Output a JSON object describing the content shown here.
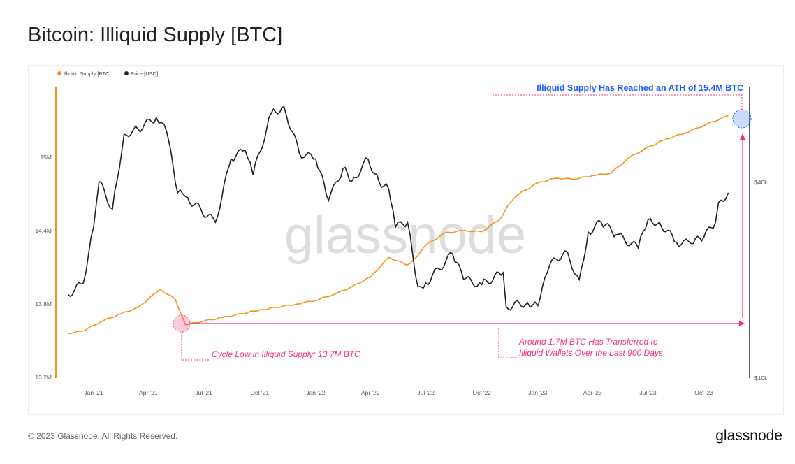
{
  "title": "Bitcoin: Illiquid Supply [BTC]",
  "footer": {
    "copyright": "© 2023 Glassnode. All Rights Reserved.",
    "logo": "glassnode"
  },
  "watermark": "glassnode",
  "chart_data": {
    "type": "line",
    "title": "",
    "legend": {
      "placement": "top-left",
      "entries": [
        "Illiquid Supply [BTC]",
        "Price [USD]"
      ]
    },
    "x_ticks": [
      "Jan '21",
      "Apr '21",
      "Jul '21",
      "Oct '21",
      "Jan '22",
      "Apr '22",
      "Jul '22",
      "Oct '22",
      "Jan '23",
      "Apr '23",
      "Jul '23",
      "Oct '23"
    ],
    "x_tick_dates": [
      "2021-01-01",
      "2021-04-01",
      "2021-07-01",
      "2021-10-01",
      "2022-01-01",
      "2022-04-01",
      "2022-07-01",
      "2022-10-01",
      "2023-01-01",
      "2023-04-01",
      "2023-07-01",
      "2023-10-01"
    ],
    "y_left": {
      "ticks": [
        "13.2M",
        "13.8M",
        "14.4M",
        "15M"
      ],
      "tick_values": [
        13.2,
        13.8,
        14.4,
        15.0
      ],
      "range": [
        13.2,
        15.6
      ],
      "unit": "M BTC"
    },
    "y_right": {
      "ticks": [
        "$10k",
        "$40k"
      ],
      "tick_values": [
        10000,
        40000
      ],
      "scale": "log"
    },
    "grid": false,
    "series": [
      {
        "name": "Illiquid Supply [BTC]",
        "color": "#f7931a",
        "axis": "left",
        "points": [
          [
            "2020-11-20",
            13.56
          ],
          [
            "2020-12-15",
            13.58
          ],
          [
            "2021-01-15",
            13.66
          ],
          [
            "2021-02-15",
            13.72
          ],
          [
            "2021-03-15",
            13.77
          ],
          [
            "2021-04-20",
            13.92
          ],
          [
            "2021-05-15",
            13.84
          ],
          [
            "2021-06-01",
            13.63
          ],
          [
            "2021-07-01",
            13.66
          ],
          [
            "2021-08-01",
            13.69
          ],
          [
            "2021-10-01",
            13.75
          ],
          [
            "2021-12-01",
            13.8
          ],
          [
            "2022-01-01",
            13.83
          ],
          [
            "2022-02-01",
            13.88
          ],
          [
            "2022-03-01",
            13.94
          ],
          [
            "2022-04-01",
            14.02
          ],
          [
            "2022-05-01",
            14.18
          ],
          [
            "2022-06-01",
            14.12
          ],
          [
            "2022-06-15",
            14.18
          ],
          [
            "2022-07-01",
            14.28
          ],
          [
            "2022-08-01",
            14.38
          ],
          [
            "2022-09-01",
            14.4
          ],
          [
            "2022-10-01",
            14.39
          ],
          [
            "2022-11-01",
            14.5
          ],
          [
            "2022-11-15",
            14.62
          ],
          [
            "2022-12-01",
            14.7
          ],
          [
            "2023-01-01",
            14.79
          ],
          [
            "2023-02-01",
            14.83
          ],
          [
            "2023-03-01",
            14.82
          ],
          [
            "2023-04-01",
            14.85
          ],
          [
            "2023-05-01",
            14.87
          ],
          [
            "2023-06-01",
            15.0
          ],
          [
            "2023-07-01",
            15.08
          ],
          [
            "2023-08-01",
            15.15
          ],
          [
            "2023-09-01",
            15.2
          ],
          [
            "2023-10-01",
            15.26
          ],
          [
            "2023-11-10",
            15.34
          ]
        ]
      },
      {
        "name": "Price [USD]",
        "color": "#222222",
        "axis": "right",
        "points": [
          [
            "2020-11-20",
            18000
          ],
          [
            "2020-12-15",
            19500
          ],
          [
            "2021-01-01",
            29000
          ],
          [
            "2021-01-10",
            40000
          ],
          [
            "2021-02-01",
            33000
          ],
          [
            "2021-02-20",
            56000
          ],
          [
            "2021-03-15",
            58000
          ],
          [
            "2021-04-14",
            63000
          ],
          [
            "2021-05-01",
            57000
          ],
          [
            "2021-05-19",
            37000
          ],
          [
            "2021-06-01",
            36000
          ],
          [
            "2021-07-20",
            30000
          ],
          [
            "2021-08-15",
            47000
          ],
          [
            "2021-09-07",
            50000
          ],
          [
            "2021-09-20",
            42000
          ],
          [
            "2021-10-20",
            65000
          ],
          [
            "2021-11-10",
            68000
          ],
          [
            "2021-12-05",
            49000
          ],
          [
            "2022-01-01",
            47000
          ],
          [
            "2022-01-22",
            35000
          ],
          [
            "2022-02-15",
            44000
          ],
          [
            "2022-03-01",
            40000
          ],
          [
            "2022-03-28",
            47000
          ],
          [
            "2022-04-15",
            40000
          ],
          [
            "2022-05-01",
            38000
          ],
          [
            "2022-05-12",
            29000
          ],
          [
            "2022-06-01",
            30000
          ],
          [
            "2022-06-18",
            19000
          ],
          [
            "2022-07-01",
            19500
          ],
          [
            "2022-08-14",
            24000
          ],
          [
            "2022-09-01",
            20000
          ],
          [
            "2022-10-01",
            19300
          ],
          [
            "2022-11-05",
            21000
          ],
          [
            "2022-11-10",
            16500
          ],
          [
            "2022-12-15",
            17000
          ],
          [
            "2023-01-01",
            16600
          ],
          [
            "2023-01-20",
            22000
          ],
          [
            "2023-02-15",
            24500
          ],
          [
            "2023-03-10",
            20000
          ],
          [
            "2023-03-25",
            28000
          ],
          [
            "2023-04-15",
            30000
          ],
          [
            "2023-05-10",
            27500
          ],
          [
            "2023-06-15",
            25000
          ],
          [
            "2023-07-01",
            30500
          ],
          [
            "2023-07-20",
            30000
          ],
          [
            "2023-08-17",
            26000
          ],
          [
            "2023-09-10",
            25800
          ],
          [
            "2023-10-01",
            27000
          ],
          [
            "2023-10-20",
            30000
          ],
          [
            "2023-10-25",
            34500
          ],
          [
            "2023-11-10",
            37000
          ]
        ]
      }
    ],
    "annotations": {
      "ath": "Illiquid Supply Has Reached an ATH of 15.4M BTC",
      "low": "Cycle Low in Illiquid Supply: 13.7M BTC",
      "transfer_1": "Around 1.7M BTC Has Transferred to",
      "transfer_2": "Illiquid Wallets Over the Last 900 Days",
      "ath_color": "#1a5cff",
      "highlight_color": "#ff2d78"
    }
  }
}
